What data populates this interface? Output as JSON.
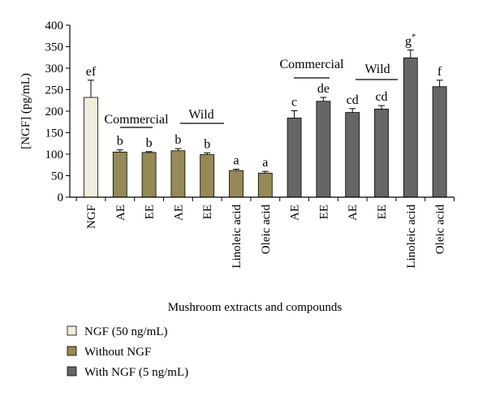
{
  "chart_data": {
    "type": "bar",
    "ylabel": "[NGF] (pg/mL)",
    "xlabel": "Mushroom extracts and compounds",
    "ylim": [
      0,
      400
    ],
    "yticks": [
      0,
      50,
      100,
      150,
      200,
      250,
      300,
      350,
      400
    ],
    "grid": false,
    "categories": [
      "NGF",
      "AE",
      "EE",
      "AE",
      "EE",
      "Linoleic acid",
      "Oleic acid",
      "AE",
      "EE",
      "AE",
      "EE",
      "Linoleic acid",
      "Oleic acid"
    ],
    "values": [
      232,
      105,
      104,
      108,
      99,
      62,
      56,
      184,
      223,
      197,
      205,
      324,
      257
    ],
    "errors": [
      40,
      5,
      2,
      5,
      4,
      3,
      4,
      17,
      9,
      9,
      8,
      18,
      15
    ],
    "significance": [
      "ef",
      "b",
      "b",
      "b",
      "b",
      "a",
      "a",
      "c",
      "de",
      "cd",
      "cd",
      "g*",
      "f"
    ],
    "series_index": [
      0,
      1,
      1,
      1,
      1,
      1,
      1,
      2,
      2,
      2,
      2,
      2,
      2
    ],
    "series": [
      {
        "name": "NGF (50 ng/mL)",
        "color": "#f1eedb"
      },
      {
        "name": "Without NGF",
        "color": "#958955"
      },
      {
        "name": "With NGF (5 ng/mL)",
        "color": "#666666"
      }
    ],
    "group_labels": [
      {
        "text": "Commercial",
        "from": 1,
        "to": 2
      },
      {
        "text": "Wild",
        "from": 3,
        "to": 4
      },
      {
        "text": "Commercial",
        "from": 7,
        "to": 8
      },
      {
        "text": "Wild",
        "from": 9,
        "to": 10
      }
    ],
    "legend_position": "bottom-left"
  }
}
